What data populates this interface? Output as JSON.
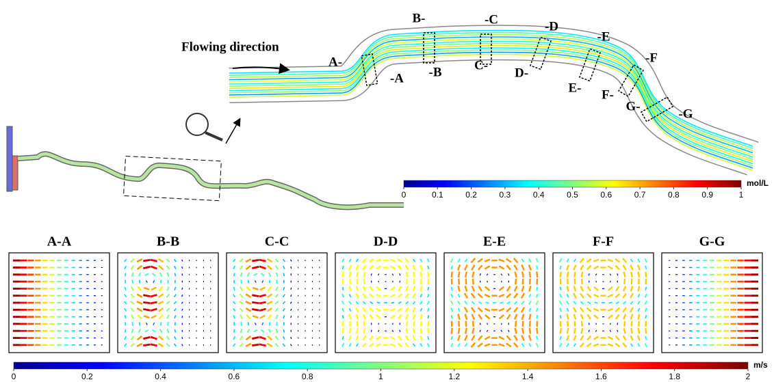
{
  "flow_label": "Flowing direction",
  "sections": [
    {
      "left": "A-",
      "right": "-A"
    },
    {
      "left": "B-",
      "right": "-B"
    },
    {
      "left": "C-",
      "right": "-C"
    },
    {
      "left": "D-",
      "right": "-D"
    },
    {
      "left": "E-",
      "right": "-E"
    },
    {
      "left": "F-",
      "right": "-F"
    },
    {
      "left": "G-",
      "right": "-G"
    }
  ],
  "colorbar_concentration": {
    "unit": "mol/L",
    "lim": [
      0,
      1
    ],
    "ticks": [
      0,
      0.1,
      0.2,
      0.3,
      0.4,
      0.5,
      0.6,
      0.7,
      0.8,
      0.9,
      1
    ]
  },
  "panels": [
    "A-A",
    "B-B",
    "C-C",
    "D-D",
    "E-E",
    "F-F",
    "G-G"
  ],
  "colorbar_velocity": {
    "unit": "m/s",
    "lim": [
      0,
      2
    ],
    "ticks": [
      0,
      0.2,
      0.4,
      0.6,
      0.8,
      1,
      1.2,
      1.4,
      1.6,
      1.8,
      2
    ]
  }
}
